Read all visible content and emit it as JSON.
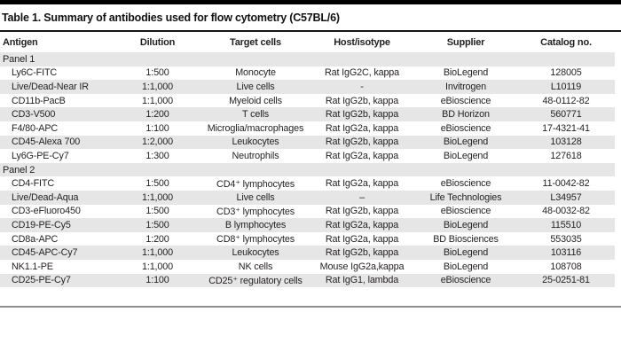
{
  "table": {
    "title": "Table 1. Summary of antibodies used for flow cytometry (C57BL/6)",
    "columns": [
      "Antigen",
      "Dilution",
      "Target cells",
      "Host/isotype",
      "Supplier",
      "Catalog no."
    ],
    "sections": [
      {
        "label": "Panel 1",
        "rows": [
          {
            "antigen": "Ly6C-FITC",
            "dilution": "1:500",
            "target": "Monocyte",
            "host": "Rat IgG2C, kappa",
            "supplier": "BioLegend",
            "catalog": "128005"
          },
          {
            "antigen": "Live/Dead-Near IR",
            "dilution": "1:1,000",
            "target": "Live cells",
            "host": "-",
            "supplier": "Invitrogen",
            "catalog": "L10119"
          },
          {
            "antigen": "CD11b-PacB",
            "dilution": "1:1,000",
            "target": "Myeloid cells",
            "host": "Rat IgG2b, kappa",
            "supplier": "eBioscience",
            "catalog": "48-0112-82"
          },
          {
            "antigen": "CD3-V500",
            "dilution": "1:200",
            "target": "T cells",
            "host": "Rat IgG2b, kappa",
            "supplier": "BD Horizon",
            "catalog": "560771"
          },
          {
            "antigen": "F4/80-APC",
            "dilution": "1:100",
            "target": "Microglia/macrophages",
            "host": "Rat IgG2a, kappa",
            "supplier": "eBioscience",
            "catalog": "17-4321-41"
          },
          {
            "antigen": "CD45-Alexa 700",
            "dilution": "1:2,000",
            "target": "Leukocytes",
            "host": "Rat IgG2b, kappa",
            "supplier": "BioLegend",
            "catalog": "103128"
          },
          {
            "antigen": "Ly6G-PE-Cy7",
            "dilution": "1:300",
            "target": "Neutrophils",
            "host": "Rat IgG2a, kappa",
            "supplier": "BioLegend",
            "catalog": "127618"
          }
        ]
      },
      {
        "label": "Panel 2",
        "rows": [
          {
            "antigen": "CD4-FITC",
            "dilution": "1:500",
            "target": "CD4⁺ lymphocytes",
            "host": "Rat IgG2a, kappa",
            "supplier": "eBioscience",
            "catalog": "11-0042-82"
          },
          {
            "antigen": "Live/Dead-Aqua",
            "dilution": "1:1,000",
            "target": "Live cells",
            "host": "–",
            "supplier": "Life Technologies",
            "catalog": "L34957"
          },
          {
            "antigen": "CD3-eFluoro450",
            "dilution": "1:500",
            "target": "CD3⁺ lymphocytes",
            "host": "Rat IgG2b, kappa",
            "supplier": "eBioscience",
            "catalog": "48-0032-82"
          },
          {
            "antigen": "CD19-PE-Cy5",
            "dilution": "1:500",
            "target": "B lymphocytes",
            "host": "Rat IgG2a, kappa",
            "supplier": "BioLegend",
            "catalog": "115510"
          },
          {
            "antigen": "CD8a-APC",
            "dilution": "1:200",
            "target": "CD8⁺ lymphocytes",
            "host": "Rat IgG2a, kappa",
            "supplier": "BD Biosciences",
            "catalog": "553035"
          },
          {
            "antigen": "CD45-APC-Cy7",
            "dilution": "1:1,000",
            "target": "Leukocytes",
            "host": "Rat IgG2b, kappa",
            "supplier": "BioLegend",
            "catalog": "103116"
          },
          {
            "antigen": "NK1.1-PE",
            "dilution": "1:1,000",
            "target": "NK cells",
            "host": "Mouse IgG2a,kappa",
            "supplier": "BioLegend",
            "catalog": "108708"
          },
          {
            "antigen": "CD25-PE-Cy7",
            "dilution": "1:100",
            "target": "CD25⁺ regulatory cells",
            "host": "Rat IgG1, lambda",
            "supplier": "eBioscience",
            "catalog": "25-0251-81"
          }
        ]
      }
    ],
    "colors": {
      "row_shade": "#e6e6e6",
      "text": "#231f20",
      "top_bar": "#000000",
      "bottom_rule": "#8e8e8e"
    }
  }
}
